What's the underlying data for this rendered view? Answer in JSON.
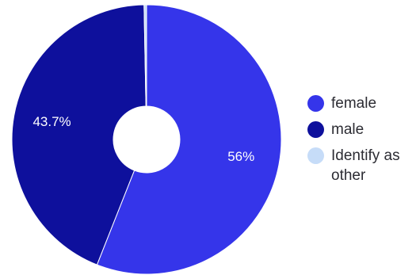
{
  "chart_data": {
    "type": "pie",
    "donut": true,
    "title": "",
    "legend_position": "right",
    "slices": [
      {
        "name": "female",
        "value": 56,
        "label": "56%",
        "color": "#3535ea"
      },
      {
        "name": "male",
        "value": 43.7,
        "label": "43.7%",
        "color": "#0e109c"
      },
      {
        "name": "Identify as other",
        "value": 0.3,
        "label": "",
        "color": "#c6dcf8"
      }
    ]
  }
}
